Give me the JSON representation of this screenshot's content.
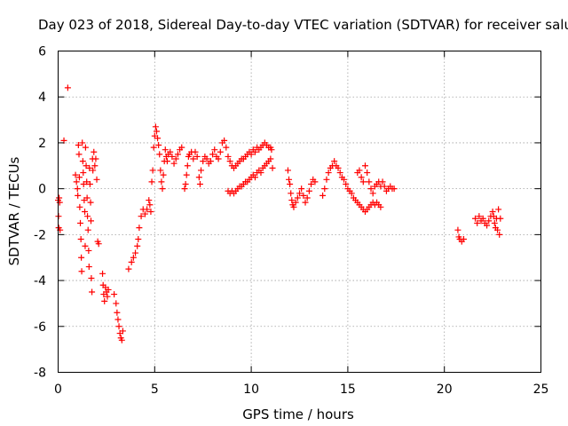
{
  "chart_data": {
    "type": "scatter",
    "title": "Day 023 of 2018, Sidereal Day-to-day VTEC variation (SDTVAR) for receiver salu",
    "xlabel": "GPS time / hours",
    "ylabel": "SDTVAR / TECUs",
    "xlim": [
      0,
      25
    ],
    "ylim": [
      -8,
      6
    ],
    "xticks": [
      0,
      5,
      10,
      15,
      20,
      25
    ],
    "yticks": [
      -8,
      -6,
      -4,
      -2,
      0,
      2,
      4,
      6
    ],
    "xtick_labels": [
      "0",
      "5",
      "10",
      "15",
      "20",
      "25"
    ],
    "ytick_labels": [
      "-8",
      "-6",
      "-4",
      "-2",
      "0",
      "2",
      "4",
      "6"
    ],
    "grid": true,
    "marker": "+",
    "color": "#ff0000",
    "series": [
      {
        "name": "SDTVAR",
        "points": [
          [
            0.0,
            -0.5
          ],
          [
            0.02,
            -1.2
          ],
          [
            0.03,
            -1.7
          ],
          [
            0.05,
            -0.4
          ],
          [
            0.08,
            -0.6
          ],
          [
            0.1,
            -1.8
          ],
          [
            0.3,
            2.1
          ],
          [
            0.5,
            4.4
          ],
          [
            0.9,
            0.6
          ],
          [
            0.95,
            0.3
          ],
          [
            1.0,
            0.0
          ],
          [
            1.02,
            -0.3
          ],
          [
            1.05,
            1.9
          ],
          [
            1.08,
            1.5
          ],
          [
            1.1,
            0.5
          ],
          [
            1.12,
            -0.8
          ],
          [
            1.15,
            -1.5
          ],
          [
            1.18,
            -2.2
          ],
          [
            1.2,
            -3.0
          ],
          [
            1.22,
            -3.6
          ],
          [
            1.25,
            2.0
          ],
          [
            1.28,
            1.2
          ],
          [
            1.3,
            0.7
          ],
          [
            1.32,
            0.2
          ],
          [
            1.35,
            -0.5
          ],
          [
            1.38,
            -1.0
          ],
          [
            1.4,
            -2.5
          ],
          [
            1.42,
            1.8
          ],
          [
            1.45,
            1.0
          ],
          [
            1.48,
            0.3
          ],
          [
            1.5,
            -0.4
          ],
          [
            1.52,
            -1.2
          ],
          [
            1.55,
            -1.8
          ],
          [
            1.58,
            -2.7
          ],
          [
            1.6,
            -3.4
          ],
          [
            1.62,
            0.9
          ],
          [
            1.65,
            0.2
          ],
          [
            1.68,
            -0.6
          ],
          [
            1.7,
            -1.4
          ],
          [
            1.72,
            -3.9
          ],
          [
            1.75,
            -4.5
          ],
          [
            1.78,
            1.3
          ],
          [
            1.8,
            0.8
          ],
          [
            1.85,
            1.6
          ],
          [
            1.9,
            1.0
          ],
          [
            1.95,
            1.3
          ],
          [
            2.0,
            0.4
          ],
          [
            2.05,
            -2.3
          ],
          [
            2.1,
            -2.4
          ],
          [
            2.3,
            -3.7
          ],
          [
            2.33,
            -4.2
          ],
          [
            2.36,
            -4.6
          ],
          [
            2.4,
            -4.9
          ],
          [
            2.45,
            -4.3
          ],
          [
            2.5,
            -4.5
          ],
          [
            2.55,
            -4.7
          ],
          [
            2.6,
            -4.4
          ],
          [
            2.9,
            -4.6
          ],
          [
            3.0,
            -5.0
          ],
          [
            3.05,
            -5.4
          ],
          [
            3.1,
            -5.7
          ],
          [
            3.15,
            -6.0
          ],
          [
            3.2,
            -6.3
          ],
          [
            3.25,
            -6.5
          ],
          [
            3.3,
            -6.6
          ],
          [
            3.35,
            -6.2
          ],
          [
            3.65,
            -3.5
          ],
          [
            3.8,
            -3.2
          ],
          [
            3.9,
            -3.0
          ],
          [
            4.0,
            -2.8
          ],
          [
            4.1,
            -2.5
          ],
          [
            4.15,
            -2.2
          ],
          [
            4.2,
            -1.7
          ],
          [
            4.3,
            -1.2
          ],
          [
            4.4,
            -0.9
          ],
          [
            4.5,
            -1.1
          ],
          [
            4.6,
            -0.9
          ],
          [
            4.7,
            -0.5
          ],
          [
            4.75,
            -0.7
          ],
          [
            4.8,
            -1.0
          ],
          [
            4.85,
            0.3
          ],
          [
            4.9,
            0.8
          ],
          [
            4.95,
            1.8
          ],
          [
            5.0,
            2.3
          ],
          [
            5.05,
            2.7
          ],
          [
            5.1,
            2.5
          ],
          [
            5.15,
            2.2
          ],
          [
            5.2,
            1.9
          ],
          [
            5.25,
            1.5
          ],
          [
            5.3,
            0.8
          ],
          [
            5.35,
            0.3
          ],
          [
            5.4,
            0.0
          ],
          [
            5.45,
            0.6
          ],
          [
            5.5,
            1.2
          ],
          [
            5.55,
            1.7
          ],
          [
            5.6,
            1.4
          ],
          [
            5.65,
            1.2
          ],
          [
            5.7,
            1.5
          ],
          [
            5.8,
            1.6
          ],
          [
            5.9,
            1.4
          ],
          [
            6.0,
            1.1
          ],
          [
            6.1,
            1.3
          ],
          [
            6.2,
            1.5
          ],
          [
            6.3,
            1.7
          ],
          [
            6.4,
            1.8
          ],
          [
            6.55,
            0.0
          ],
          [
            6.6,
            0.2
          ],
          [
            6.65,
            0.6
          ],
          [
            6.7,
            1.0
          ],
          [
            6.75,
            1.4
          ],
          [
            6.8,
            1.5
          ],
          [
            6.9,
            1.6
          ],
          [
            7.0,
            1.3
          ],
          [
            7.1,
            1.6
          ],
          [
            7.2,
            1.4
          ],
          [
            7.3,
            0.5
          ],
          [
            7.35,
            0.2
          ],
          [
            7.4,
            0.8
          ],
          [
            7.5,
            1.2
          ],
          [
            7.6,
            1.4
          ],
          [
            7.7,
            1.3
          ],
          [
            7.8,
            1.1
          ],
          [
            7.9,
            1.2
          ],
          [
            8.0,
            1.5
          ],
          [
            8.1,
            1.7
          ],
          [
            8.2,
            1.4
          ],
          [
            8.3,
            1.3
          ],
          [
            8.4,
            1.6
          ],
          [
            8.5,
            2.0
          ],
          [
            8.6,
            2.1
          ],
          [
            8.7,
            1.8
          ],
          [
            8.8,
            1.4
          ],
          [
            8.9,
            1.2
          ],
          [
            9.0,
            1.0
          ],
          [
            9.1,
            0.9
          ],
          [
            9.2,
            1.0
          ],
          [
            9.3,
            1.1
          ],
          [
            9.4,
            1.2
          ],
          [
            9.5,
            1.3
          ],
          [
            9.6,
            1.3
          ],
          [
            9.7,
            1.4
          ],
          [
            9.8,
            1.5
          ],
          [
            9.9,
            1.6
          ],
          [
            10.0,
            1.5
          ],
          [
            10.1,
            1.7
          ],
          [
            10.2,
            1.6
          ],
          [
            10.3,
            1.8
          ],
          [
            10.4,
            1.7
          ],
          [
            10.5,
            1.8
          ],
          [
            10.6,
            1.9
          ],
          [
            10.7,
            2.0
          ],
          [
            10.8,
            1.9
          ],
          [
            10.9,
            1.8
          ],
          [
            11.0,
            1.8
          ],
          [
            11.05,
            1.7
          ],
          [
            8.8,
            -0.1
          ],
          [
            8.9,
            -0.2
          ],
          [
            9.0,
            -0.1
          ],
          [
            9.1,
            -0.2
          ],
          [
            9.2,
            -0.1
          ],
          [
            9.3,
            0.0
          ],
          [
            9.4,
            0.1
          ],
          [
            9.5,
            0.1
          ],
          [
            9.6,
            0.2
          ],
          [
            9.7,
            0.3
          ],
          [
            9.8,
            0.3
          ],
          [
            9.9,
            0.4
          ],
          [
            10.0,
            0.5
          ],
          [
            10.1,
            0.6
          ],
          [
            10.2,
            0.5
          ],
          [
            10.3,
            0.7
          ],
          [
            10.4,
            0.8
          ],
          [
            10.5,
            0.7
          ],
          [
            10.6,
            0.9
          ],
          [
            10.7,
            1.0
          ],
          [
            10.8,
            1.1
          ],
          [
            10.9,
            1.2
          ],
          [
            11.0,
            1.3
          ],
          [
            11.1,
            0.9
          ],
          [
            11.9,
            0.8
          ],
          [
            11.95,
            0.4
          ],
          [
            12.0,
            0.2
          ],
          [
            12.05,
            -0.2
          ],
          [
            12.1,
            -0.5
          ],
          [
            12.15,
            -0.7
          ],
          [
            12.2,
            -0.8
          ],
          [
            12.3,
            -0.6
          ],
          [
            12.4,
            -0.4
          ],
          [
            12.5,
            -0.2
          ],
          [
            12.6,
            0.0
          ],
          [
            12.7,
            -0.3
          ],
          [
            12.8,
            -0.6
          ],
          [
            12.9,
            -0.4
          ],
          [
            13.0,
            -0.1
          ],
          [
            13.1,
            0.2
          ],
          [
            13.2,
            0.4
          ],
          [
            13.3,
            0.3
          ],
          [
            13.7,
            -0.3
          ],
          [
            13.8,
            0.0
          ],
          [
            13.9,
            0.4
          ],
          [
            14.0,
            0.7
          ],
          [
            14.1,
            0.9
          ],
          [
            14.2,
            1.0
          ],
          [
            14.3,
            1.2
          ],
          [
            14.4,
            1.0
          ],
          [
            14.5,
            0.9
          ],
          [
            14.6,
            0.7
          ],
          [
            14.7,
            0.5
          ],
          [
            14.8,
            0.4
          ],
          [
            14.9,
            0.2
          ],
          [
            15.0,
            0.0
          ],
          [
            15.1,
            -0.1
          ],
          [
            15.2,
            -0.2
          ],
          [
            15.3,
            -0.4
          ],
          [
            15.4,
            -0.5
          ],
          [
            15.5,
            -0.6
          ],
          [
            15.6,
            -0.7
          ],
          [
            15.7,
            -0.8
          ],
          [
            15.8,
            -0.9
          ],
          [
            15.9,
            -1.0
          ],
          [
            16.0,
            -0.9
          ],
          [
            16.1,
            -0.8
          ],
          [
            16.2,
            -0.7
          ],
          [
            16.3,
            -0.6
          ],
          [
            16.4,
            -0.7
          ],
          [
            16.5,
            -0.6
          ],
          [
            16.6,
            -0.7
          ],
          [
            16.7,
            -0.8
          ],
          [
            15.5,
            0.7
          ],
          [
            15.6,
            0.8
          ],
          [
            15.7,
            0.5
          ],
          [
            15.8,
            0.3
          ],
          [
            15.9,
            1.0
          ],
          [
            16.0,
            0.7
          ],
          [
            16.1,
            0.3
          ],
          [
            16.2,
            0.0
          ],
          [
            16.3,
            -0.2
          ],
          [
            16.4,
            0.1
          ],
          [
            16.5,
            0.2
          ],
          [
            16.6,
            0.3
          ],
          [
            16.7,
            0.1
          ],
          [
            16.8,
            0.3
          ],
          [
            16.9,
            0.1
          ],
          [
            17.0,
            -0.1
          ],
          [
            17.1,
            0.0
          ],
          [
            17.2,
            0.1
          ],
          [
            17.3,
            0.0
          ],
          [
            17.4,
            0.0
          ],
          [
            20.7,
            -1.8
          ],
          [
            20.75,
            -2.1
          ],
          [
            20.8,
            -2.2
          ],
          [
            20.9,
            -2.3
          ],
          [
            21.0,
            -2.2
          ],
          [
            21.6,
            -1.3
          ],
          [
            21.7,
            -1.5
          ],
          [
            21.8,
            -1.2
          ],
          [
            21.9,
            -1.4
          ],
          [
            22.0,
            -1.3
          ],
          [
            22.1,
            -1.5
          ],
          [
            22.2,
            -1.6
          ],
          [
            22.3,
            -1.4
          ],
          [
            22.4,
            -1.2
          ],
          [
            22.5,
            -1.0
          ],
          [
            22.55,
            -1.2
          ],
          [
            22.6,
            -1.5
          ],
          [
            22.65,
            -1.7
          ],
          [
            22.7,
            -1.3
          ],
          [
            22.75,
            -1.8
          ],
          [
            22.8,
            -0.9
          ],
          [
            22.85,
            -2.0
          ],
          [
            22.9,
            -1.3
          ]
        ]
      }
    ]
  }
}
